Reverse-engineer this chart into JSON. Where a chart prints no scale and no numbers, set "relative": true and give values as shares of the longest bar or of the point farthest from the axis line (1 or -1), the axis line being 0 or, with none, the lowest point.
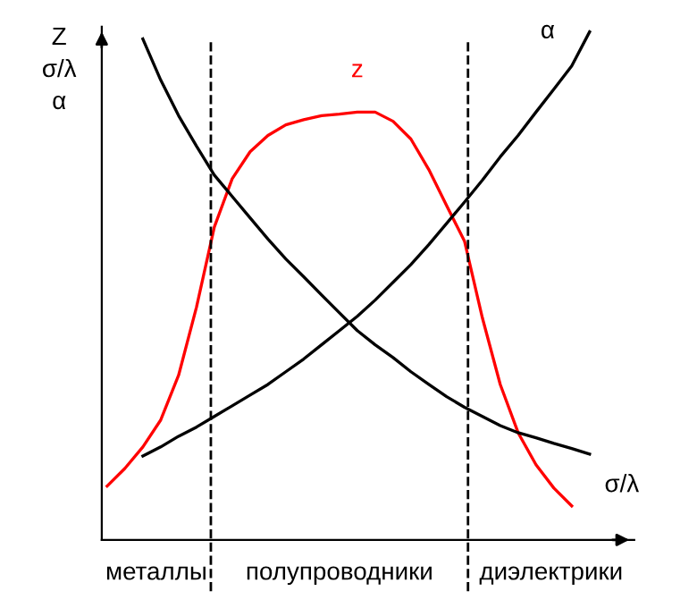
{
  "chart_data": {
    "type": "line",
    "relative": true,
    "ylabel": "Z\nσ/λ\nα",
    "categories": [
      null,
      null,
      null,
      null,
      null,
      null,
      null,
      null,
      null,
      null,
      null,
      null,
      null,
      null,
      null,
      null,
      null,
      null,
      null,
      null,
      null,
      null,
      null,
      null,
      null,
      null,
      null,
      null
    ],
    "legend": false,
    "marker": "none",
    "line_style": "solid",
    "series": [
      {
        "name": "z",
        "color": "#ff0000",
        "values": [
          0.106,
          0.141,
          0.183,
          0.236,
          0.324,
          0.458,
          0.616,
          0.711,
          0.764,
          0.796,
          0.817,
          0.827,
          0.835,
          0.838,
          0.842,
          0.842,
          0.824,
          0.789,
          0.729,
          0.658,
          0.588,
          0.437,
          0.306,
          0.211,
          0.148,
          0.102,
          0.067,
          null
        ]
      },
      {
        "name": "α",
        "color": "#000000",
        "values": [
          null,
          null,
          0.165,
          0.183,
          0.204,
          0.222,
          0.243,
          0.264,
          0.285,
          0.306,
          0.331,
          0.356,
          0.384,
          0.412,
          0.44,
          0.472,
          0.507,
          0.542,
          0.581,
          0.623,
          0.665,
          0.708,
          0.754,
          0.796,
          0.842,
          0.887,
          0.933,
          1
        ]
      },
      {
        "name": "σ/λ",
        "color": "#000000",
        "values": [
          null,
          null,
          0.986,
          0.905,
          0.835,
          0.775,
          0.718,
          0.676,
          0.634,
          0.592,
          0.553,
          0.518,
          0.482,
          0.447,
          0.412,
          0.384,
          0.359,
          0.331,
          0.306,
          0.282,
          0.261,
          0.243,
          0.225,
          0.211,
          0.201,
          0.19,
          0.18,
          0.169
        ]
      }
    ],
    "annotations": [
      "металлы",
      "полупроводники",
      "диэлектрики"
    ]
  }
}
